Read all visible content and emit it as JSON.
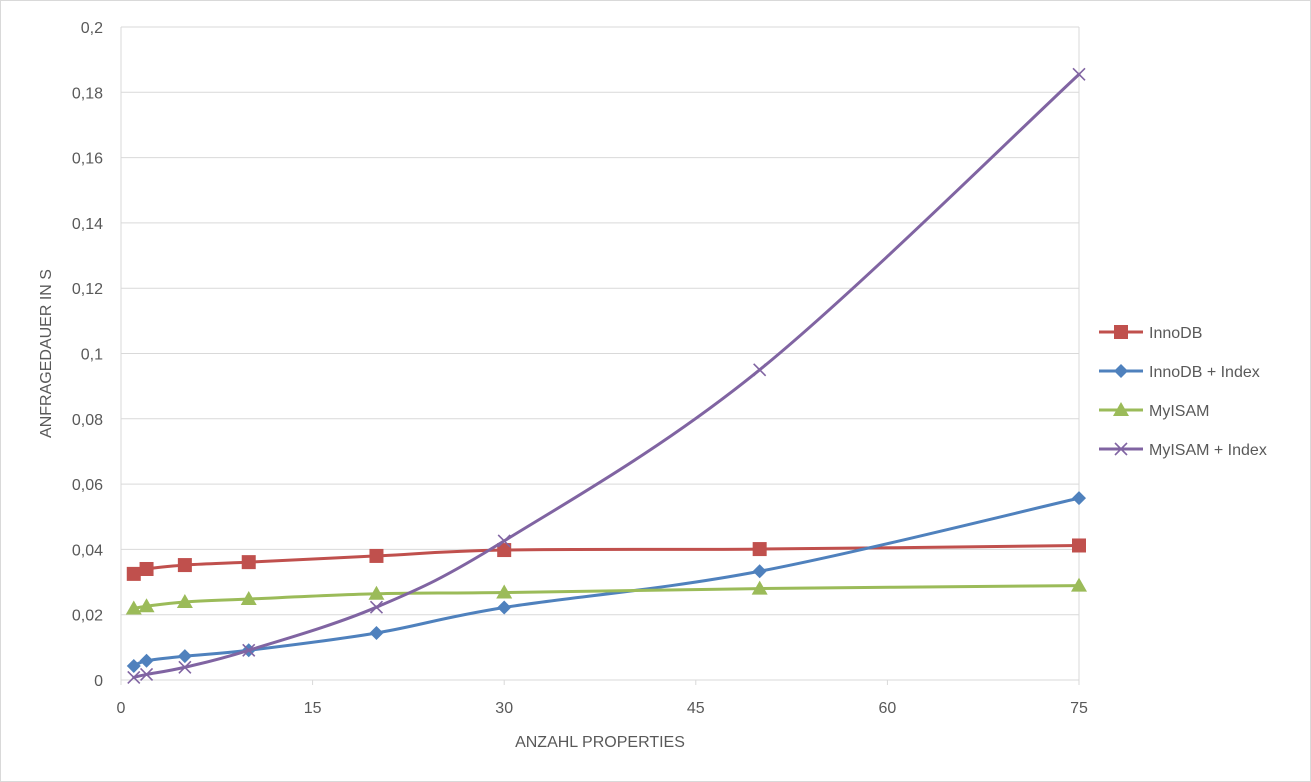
{
  "chart_data": {
    "type": "line",
    "title": "",
    "xlabel": "ANZAHL PROPERTIES",
    "ylabel": "ANFRAGEDAUER IN S",
    "xlim": [
      0,
      75
    ],
    "ylim": [
      0,
      0.2
    ],
    "x_ticks": [
      "0",
      "15",
      "30",
      "45",
      "60",
      "75"
    ],
    "x_tick_values": [
      0,
      15,
      30,
      45,
      60,
      75
    ],
    "y_ticks": [
      "0",
      "0,02",
      "0,04",
      "0,06",
      "0,08",
      "0,1",
      "0,12",
      "0,14",
      "0,16",
      "0,18",
      "0,2"
    ],
    "y_tick_values": [
      0,
      0.02,
      0.04,
      0.06,
      0.08,
      0.1,
      0.12,
      0.14,
      0.16,
      0.18,
      0.2
    ],
    "grid": "horizontal",
    "legend_position": "right",
    "series": [
      {
        "name": "InnoDB",
        "color": "#c0504d",
        "marker": "square",
        "x": [
          1,
          2,
          5,
          10,
          20,
          30,
          50,
          75
        ],
        "y": [
          0.0325,
          0.034,
          0.0352,
          0.0361,
          0.038,
          0.0398,
          0.0401,
          0.0412
        ]
      },
      {
        "name": "InnoDB + Index",
        "color": "#4f81bd",
        "marker": "diamond",
        "x": [
          1,
          2,
          5,
          10,
          20,
          30,
          50,
          75
        ],
        "y": [
          0.0043,
          0.0059,
          0.0073,
          0.0091,
          0.0144,
          0.0222,
          0.0333,
          0.0557
        ]
      },
      {
        "name": "MyISAM",
        "color": "#9bbb59",
        "marker": "triangle",
        "x": [
          1,
          2,
          5,
          10,
          20,
          30,
          50,
          75
        ],
        "y": [
          0.0219,
          0.0226,
          0.0239,
          0.0248,
          0.0264,
          0.0268,
          0.028,
          0.0289
        ]
      },
      {
        "name": "MyISAM + Index",
        "color": "#8064a2",
        "marker": "x",
        "x": [
          1,
          2,
          5,
          10,
          20,
          30,
          50,
          75
        ],
        "y": [
          0.0008,
          0.0017,
          0.0039,
          0.0091,
          0.0223,
          0.0426,
          0.095,
          0.1855
        ]
      }
    ]
  }
}
